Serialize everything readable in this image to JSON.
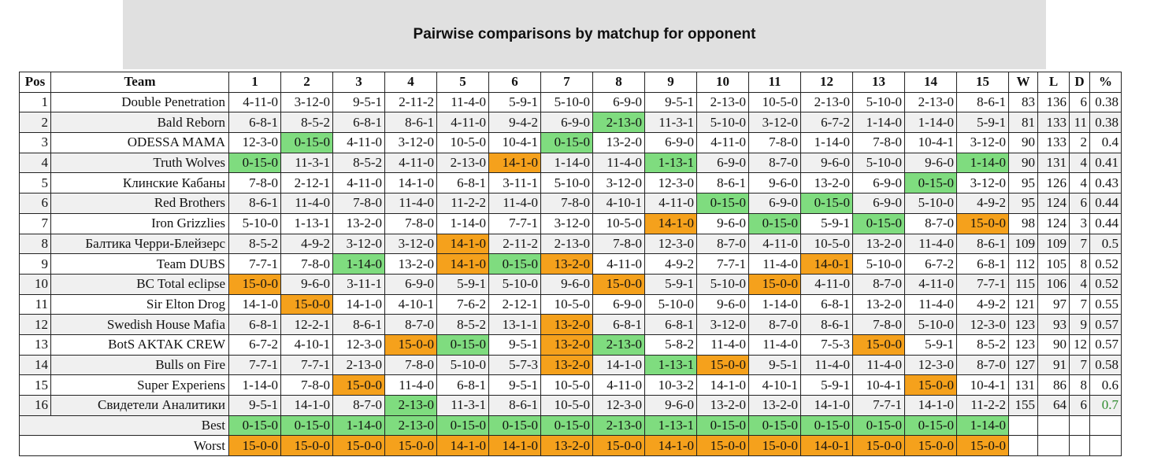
{
  "title": "Pairwise comparisons by matchup for opponent",
  "columns": [
    "Pos",
    "Team",
    "1",
    "2",
    "3",
    "4",
    "5",
    "6",
    "7",
    "8",
    "9",
    "10",
    "11",
    "12",
    "13",
    "14",
    "15",
    "W",
    "L",
    "D",
    "%"
  ],
  "colors": {
    "best": "#7fdc7f",
    "worst": "#f5a11c",
    "alt_row": "#f0f0f0",
    "header_bg": "#e0e0e0"
  },
  "rows": [
    {
      "pos": "1",
      "team": "Double Penetration",
      "cells": [
        "4-11-0",
        "3-12-0",
        "9-5-1",
        "2-11-2",
        "11-4-0",
        "5-9-1",
        "5-10-0",
        "6-9-0",
        "9-5-1",
        "2-13-0",
        "10-5-0",
        "2-13-0",
        "5-10-0",
        "2-13-0",
        "8-6-1"
      ],
      "w": "83",
      "l": "136",
      "d": "6",
      "pct": "0.38"
    },
    {
      "pos": "2",
      "team": "Bald Reborn",
      "cells": [
        "6-8-1",
        "8-5-2",
        "6-8-1",
        "8-6-1",
        "4-11-0",
        "9-4-2",
        "6-9-0",
        "2-13-0",
        "11-3-1",
        "5-10-0",
        "3-12-0",
        "6-7-2",
        "1-14-0",
        "1-14-0",
        "5-9-1"
      ],
      "w": "81",
      "l": "133",
      "d": "11",
      "pct": "0.38"
    },
    {
      "pos": "3",
      "team": "ODESSA MAMA",
      "cells": [
        "12-3-0",
        "0-15-0",
        "4-11-0",
        "3-12-0",
        "10-5-0",
        "10-4-1",
        "0-15-0",
        "13-2-0",
        "6-9-0",
        "4-11-0",
        "7-8-0",
        "1-14-0",
        "7-8-0",
        "10-4-1",
        "3-12-0"
      ],
      "w": "90",
      "l": "133",
      "d": "2",
      "pct": "0.4"
    },
    {
      "pos": "4",
      "team": "Truth Wolves",
      "cells": [
        "0-15-0",
        "11-3-1",
        "8-5-2",
        "4-11-0",
        "2-13-0",
        "14-1-0",
        "1-14-0",
        "11-4-0",
        "1-13-1",
        "6-9-0",
        "8-7-0",
        "9-6-0",
        "5-10-0",
        "9-6-0",
        "1-14-0"
      ],
      "w": "90",
      "l": "131",
      "d": "4",
      "pct": "0.41"
    },
    {
      "pos": "5",
      "team": "Клинские Кабаны",
      "cells": [
        "7-8-0",
        "2-12-1",
        "4-11-0",
        "14-1-0",
        "6-8-1",
        "3-11-1",
        "5-10-0",
        "3-12-0",
        "12-3-0",
        "8-6-1",
        "9-6-0",
        "13-2-0",
        "6-9-0",
        "0-15-0",
        "3-12-0"
      ],
      "w": "95",
      "l": "126",
      "d": "4",
      "pct": "0.43"
    },
    {
      "pos": "6",
      "team": "Red Brothers",
      "cells": [
        "8-6-1",
        "11-4-0",
        "7-8-0",
        "11-4-0",
        "11-2-2",
        "11-4-0",
        "7-8-0",
        "4-10-1",
        "4-11-0",
        "0-15-0",
        "6-9-0",
        "0-15-0",
        "6-9-0",
        "5-10-0",
        "4-9-2"
      ],
      "w": "95",
      "l": "124",
      "d": "6",
      "pct": "0.44"
    },
    {
      "pos": "7",
      "team": "Iron Grizzlies",
      "cells": [
        "5-10-0",
        "1-13-1",
        "13-2-0",
        "7-8-0",
        "1-14-0",
        "7-7-1",
        "3-12-0",
        "10-5-0",
        "14-1-0",
        "9-6-0",
        "0-15-0",
        "5-9-1",
        "0-15-0",
        "8-7-0",
        "15-0-0"
      ],
      "w": "98",
      "l": "124",
      "d": "3",
      "pct": "0.44"
    },
    {
      "pos": "8",
      "team": "Балтика Черри-Блейзерс",
      "cells": [
        "8-5-2",
        "4-9-2",
        "3-12-0",
        "3-12-0",
        "14-1-0",
        "2-11-2",
        "2-13-0",
        "7-8-0",
        "12-3-0",
        "8-7-0",
        "4-11-0",
        "10-5-0",
        "13-2-0",
        "11-4-0",
        "8-6-1"
      ],
      "w": "109",
      "l": "109",
      "d": "7",
      "pct": "0.5"
    },
    {
      "pos": "9",
      "team": "Team DUBS",
      "cells": [
        "7-7-1",
        "7-8-0",
        "1-14-0",
        "13-2-0",
        "14-1-0",
        "0-15-0",
        "13-2-0",
        "4-11-0",
        "4-9-2",
        "7-7-1",
        "11-4-0",
        "14-0-1",
        "5-10-0",
        "6-7-2",
        "6-8-1"
      ],
      "w": "112",
      "l": "105",
      "d": "8",
      "pct": "0.52"
    },
    {
      "pos": "10",
      "team": "BC Total eclipse",
      "cells": [
        "15-0-0",
        "9-6-0",
        "3-11-1",
        "6-9-0",
        "5-9-1",
        "5-10-0",
        "9-6-0",
        "15-0-0",
        "5-9-1",
        "5-10-0",
        "15-0-0",
        "4-11-0",
        "8-7-0",
        "4-11-0",
        "7-7-1"
      ],
      "w": "115",
      "l": "106",
      "d": "4",
      "pct": "0.52"
    },
    {
      "pos": "11",
      "team": "Sir Elton Drog",
      "cells": [
        "14-1-0",
        "15-0-0",
        "14-1-0",
        "4-10-1",
        "7-6-2",
        "2-12-1",
        "10-5-0",
        "6-9-0",
        "5-10-0",
        "9-6-0",
        "1-14-0",
        "6-8-1",
        "13-2-0",
        "11-4-0",
        "4-9-2"
      ],
      "w": "121",
      "l": "97",
      "d": "7",
      "pct": "0.55"
    },
    {
      "pos": "12",
      "team": "Swedish House Mafia",
      "cells": [
        "6-8-1",
        "12-2-1",
        "8-6-1",
        "8-7-0",
        "8-5-2",
        "13-1-1",
        "13-2-0",
        "6-8-1",
        "6-8-1",
        "3-12-0",
        "8-7-0",
        "8-6-1",
        "7-8-0",
        "5-10-0",
        "12-3-0"
      ],
      "w": "123",
      "l": "93",
      "d": "9",
      "pct": "0.57"
    },
    {
      "pos": "13",
      "team": "BotS AKTAK CREW",
      "cells": [
        "6-7-2",
        "4-10-1",
        "12-3-0",
        "15-0-0",
        "0-15-0",
        "9-5-1",
        "13-2-0",
        "2-13-0",
        "5-8-2",
        "11-4-0",
        "11-4-0",
        "7-5-3",
        "15-0-0",
        "5-9-1",
        "8-5-2"
      ],
      "w": "123",
      "l": "90",
      "d": "12",
      "pct": "0.57"
    },
    {
      "pos": "14",
      "team": "Bulls on Fire",
      "cells": [
        "7-7-1",
        "7-7-1",
        "2-13-0",
        "7-8-0",
        "5-10-0",
        "5-7-3",
        "13-2-0",
        "14-1-0",
        "1-13-1",
        "15-0-0",
        "9-5-1",
        "11-4-0",
        "11-4-0",
        "12-3-0",
        "8-7-0"
      ],
      "w": "127",
      "l": "91",
      "d": "7",
      "pct": "0.58"
    },
    {
      "pos": "15",
      "team": "Super Experiens",
      "cells": [
        "1-14-0",
        "7-8-0",
        "15-0-0",
        "11-4-0",
        "6-8-1",
        "9-5-1",
        "10-5-0",
        "4-11-0",
        "10-3-2",
        "14-1-0",
        "4-10-1",
        "5-9-1",
        "10-4-1",
        "15-0-0",
        "10-4-1"
      ],
      "w": "131",
      "l": "86",
      "d": "8",
      "pct": "0.6"
    },
    {
      "pos": "16",
      "team": "Свидетели Аналитики",
      "cells": [
        "9-5-1",
        "14-1-0",
        "8-7-0",
        "2-13-0",
        "11-3-1",
        "8-6-1",
        "10-5-0",
        "12-3-0",
        "9-6-0",
        "13-2-0",
        "13-2-0",
        "14-1-0",
        "7-7-1",
        "14-1-0",
        "11-2-2"
      ],
      "w": "155",
      "l": "64",
      "d": "6",
      "pct": "0.7"
    }
  ],
  "best_row": {
    "label": "Best",
    "cells": [
      "0-15-0",
      "0-15-0",
      "1-14-0",
      "2-13-0",
      "0-15-0",
      "0-15-0",
      "0-15-0",
      "2-13-0",
      "1-13-1",
      "0-15-0",
      "0-15-0",
      "0-15-0",
      "0-15-0",
      "0-15-0",
      "1-14-0"
    ]
  },
  "worst_row": {
    "label": "Worst",
    "cells": [
      "15-0-0",
      "15-0-0",
      "15-0-0",
      "15-0-0",
      "14-1-0",
      "14-1-0",
      "13-2-0",
      "15-0-0",
      "14-1-0",
      "15-0-0",
      "15-0-0",
      "14-0-1",
      "15-0-0",
      "15-0-0",
      "15-0-0"
    ]
  }
}
